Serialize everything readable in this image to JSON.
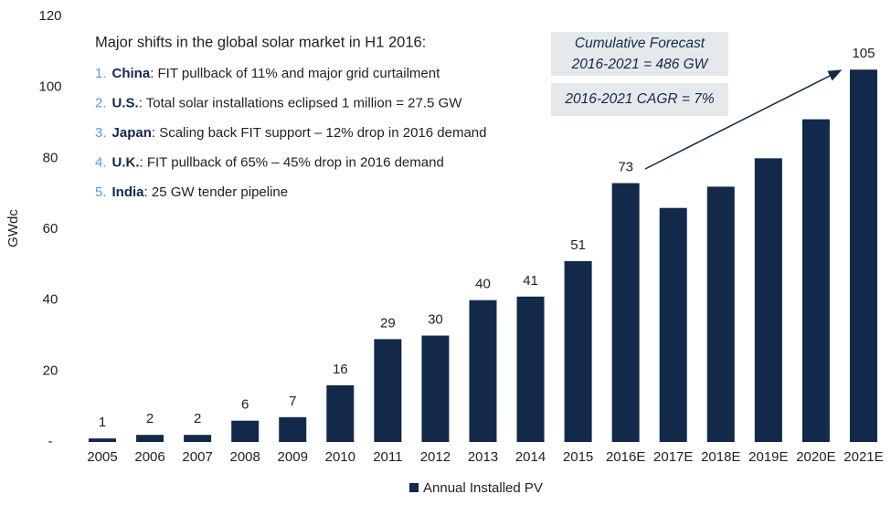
{
  "chart_data": {
    "type": "bar",
    "y_label": "GWdc",
    "categories": [
      "2005",
      "2006",
      "2007",
      "2008",
      "2009",
      "2010",
      "2011",
      "2012",
      "2013",
      "2014",
      "2015",
      "2016E",
      "2017E",
      "2018E",
      "2019E",
      "2020E",
      "2021E"
    ],
    "series": [
      {
        "name": "Annual Installed PV",
        "color": "#12294a",
        "values": [
          1,
          2,
          2,
          6,
          7,
          16,
          29,
          30,
          40,
          41,
          51,
          73,
          66,
          72,
          80,
          91,
          105
        ],
        "value_labels": [
          "1",
          "2",
          "2",
          "6",
          "7",
          "16",
          "29",
          "30",
          "40",
          "41",
          "51",
          "73",
          null,
          null,
          null,
          null,
          "105"
        ]
      }
    ],
    "ylim": [
      0,
      120
    ],
    "yticks": [
      {
        "value": 0,
        "label": "-"
      },
      20,
      40,
      60,
      80,
      100,
      120
    ],
    "grid": false,
    "legend": "bottom",
    "annotations": {
      "heading": "Major shifts in the global solar market in H1 2016:",
      "items": [
        {
          "number": "1.",
          "country": "China",
          "text": ": FIT pullback of 11% and major grid curtailment"
        },
        {
          "number": "2.",
          "country": "U.S.",
          "text": ": Total solar installations eclipsed 1 million = 27.5 GW"
        },
        {
          "number": "3.",
          "country": "Japan",
          "text": ": Scaling back FIT support – 12% drop in 2016 demand"
        },
        {
          "number": "4.",
          "country": "U.K.",
          "text": ": FIT pullback of 65% – 45% drop in 2016 demand"
        },
        {
          "number": "5.",
          "country": "India",
          "text": ": 25 GW tender pipeline"
        }
      ],
      "forecast_boxes": [
        [
          "Cumulative Forecast",
          "2016-2021 = 486 GW"
        ],
        [
          "2016-2021 CAGR = 7%"
        ]
      ]
    }
  }
}
